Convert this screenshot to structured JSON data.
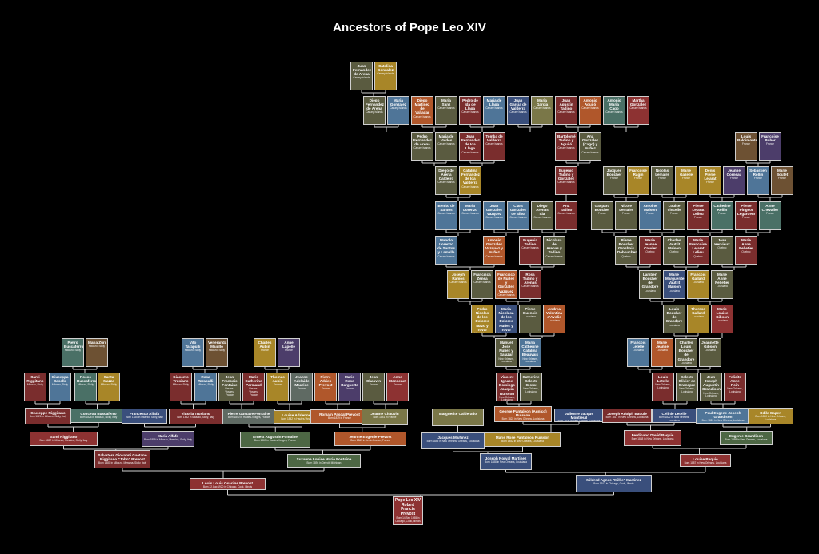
{
  "title": "Ancestors of Pope Leo XIV",
  "colors": {
    "background": "#000000",
    "line": "#d0d0d0",
    "olive": "#5a5b40",
    "mustard": "#a88628",
    "rust": "#b0572b",
    "slate": "#4f7598",
    "maroon": "#7a2d2d",
    "purple": "#4c3d6a",
    "teal": "#4a7066",
    "red": "#8d3232",
    "khaki": "#7a7748",
    "grey": "#5f6a63",
    "navy": "#3a4f7c",
    "green": "#4d6744",
    "brown": "#6d5133"
  },
  "people": [
    {
      "id": "p1",
      "name": "Pope Leo XIV Robert Francis Prevost",
      "details": "Born 14 Sep 1955 in Chicago, Cook, Illinois"
    },
    {
      "id": "f",
      "name": "Louis Louis Osacine Prevost",
      "details": "Born 22 Aug 1920 in Chicago, Cook, Illinois"
    },
    {
      "id": "m",
      "name": "Mildred Agnes \"Millie\" Martinez",
      "details": "Born 1912 in Chicago, Cook, Illinois"
    },
    {
      "id": "ff",
      "name": "Salvatore Giovanni Gaetano Riggitano \"John\" Prevost",
      "details": "Born 1880 in Milazzo, Messina, Sicily, Italy"
    },
    {
      "id": "fm",
      "name": "Suzanne Louise Marie Fontaine",
      "details": "Born 1894 in Detroit, Michigan"
    },
    {
      "id": "mf",
      "name": "Joseph Norval Martinez",
      "details": "Born 1888 in New Orleans, Louisiana"
    },
    {
      "id": "mm",
      "name": "Louise Baquie",
      "details": "Born 1887 in New Orleans, Louisiana"
    },
    {
      "id": "fff",
      "name": "Santi Riggitano",
      "details": "Born 1857 in Milazzo, Messina, Sicily, Italy"
    },
    {
      "id": "ffm",
      "name": "Maria Alfafa",
      "details": "Born 1859 in Milazzo, Messina, Sicily, Italy"
    },
    {
      "id": "fmf",
      "name": "Ernest Augustin Fontaine",
      "details": "Born 1867 in Hautes-Vosges, France"
    },
    {
      "id": "fmm",
      "name": "Jeanne Eugenie Prevost",
      "details": "Born 1867 in Ile-de-France, France"
    },
    {
      "id": "mff",
      "name": "Jacques Martinez",
      "details": "Born 1845 in New Orleans, Orleans, Louisiana"
    },
    {
      "id": "mfm",
      "name": "Marie Rose Pantaleon Ruisson",
      "details": "Born 1852 in New Orleans, Louisiana"
    },
    {
      "id": "mmf",
      "name": "Ferdinand David Baquie",
      "details": "Born 1848 in New Orleans, Louisiana"
    },
    {
      "id": "mmm",
      "name": "Eugenie Grandison",
      "details": "Born 1855 in New Orleans, Louisiana"
    },
    {
      "id": "g4a",
      "name": "Giuseppe Riggitano",
      "details": "Born 1826 in Milazzo, Sicily, Italy"
    },
    {
      "id": "g4b",
      "name": "Concetta Buscaferro",
      "details": "Born 1828 in Milazzo, Sicily, Italy"
    },
    {
      "id": "g4c",
      "name": "Francesco Alfafa",
      "details": "Born 1830 in Milazzo, Sicily, Italy"
    },
    {
      "id": "g4d",
      "name": "Vittoria Trusiano",
      "details": "Born 1832 in Milazzo, Sicily, Italy"
    },
    {
      "id": "g4e",
      "name": "Pierre Gustave Fontaine",
      "details": "Born 1840 in Hautes-Vosges, France"
    },
    {
      "id": "g4f",
      "name": "Louise Adrienne Aubin",
      "details": "Born 1842 in Hautes-Vosges, France"
    },
    {
      "id": "g4g",
      "name": "Romain Pascal Prevost",
      "details": "Born 1839 in France"
    },
    {
      "id": "g4h",
      "name": "Jeanne Chauvin",
      "details": "Born 1841 in France"
    },
    {
      "id": "g4i",
      "name": "Marguerite Calderado",
      "details": ""
    },
    {
      "id": "g4j",
      "name": "George Pantaleon (Agnico) Ruisson",
      "details": "Born 1822 in New Orleans, Louisiana"
    },
    {
      "id": "g4k",
      "name": "Julienne Jacque Montreuil",
      "details": "Born 1826 in New Orleans, Louisiana"
    },
    {
      "id": "g4l",
      "name": "Joseph Adolph Baquie",
      "details": "Born 1817 in New Orleans, Louisiana"
    },
    {
      "id": "g4m",
      "name": "Celinie Letelle",
      "details": "Born 1822 in New Orleans, Louisiana"
    },
    {
      "id": "g4n",
      "name": "Paul Eugene Joseph Grandison",
      "details": "Born 1824 in New Orleans, Louisiana"
    },
    {
      "id": "g4o",
      "name": "Odile Gapen",
      "details": "Born 1830 in New Orleans, Louisiana"
    },
    {
      "id": "g5a",
      "name": "Santi Riggitano",
      "details": "Milazzo, Sicily"
    },
    {
      "id": "g5b",
      "name": "Giuseppa Casella",
      "details": "Milazzo, Sicily"
    },
    {
      "id": "g5c",
      "name": "Rocco Buscaferro",
      "details": "Milazzo, Sicily"
    },
    {
      "id": "g5d",
      "name": "Santa Mazza",
      "details": "Milazzo, Sicily"
    },
    {
      "id": "g5e",
      "name": "Giacomo Trusiano",
      "details": "Milazzo, Sicily"
    },
    {
      "id": "g5f",
      "name": "Rosa Tarapulli",
      "details": "Milazzo, Sicily"
    },
    {
      "id": "g5g",
      "name": "Jean Francois Fontaine",
      "details": "Hautes-Vosges, France"
    },
    {
      "id": "g5h",
      "name": "Marie Catherine Parmand",
      "details": "Hautes-Vosges, France"
    },
    {
      "id": "g5i",
      "name": "Thomas Aubin",
      "details": "France"
    },
    {
      "id": "g5j",
      "name": "Jeanne Adelaide Maurice",
      "details": "France"
    },
    {
      "id": "g5k",
      "name": "Pierre Adrien Prevost",
      "details": "France"
    },
    {
      "id": "g5l",
      "name": "Marie Rose Barguette",
      "details": "France"
    },
    {
      "id": "g5m",
      "name": "Jean Chauvin",
      "details": "France"
    },
    {
      "id": "g5n",
      "name": "Anne Monnenet",
      "details": "France"
    },
    {
      "id": "g6a",
      "name": "Pietro Buscaferro",
      "details": "Milazzo, Sicily"
    },
    {
      "id": "g6b",
      "name": "Maria Zuri",
      "details": "Milazzo, Sicily"
    },
    {
      "id": "g6c",
      "name": "Vito Tarapulli",
      "details": "Milazzo, Sicily"
    },
    {
      "id": "g6d",
      "name": "Veneranda Maiullo",
      "details": "Milazzo, Sicily"
    },
    {
      "id": "g6e",
      "name": "Charles Aubin",
      "details": "France"
    },
    {
      "id": "g6f",
      "name": "Anne Lapelle",
      "details": "France"
    },
    {
      "id": "g5o",
      "name": "Vincent Ignace Domingo Joaquin Ruisson",
      "details": "New Orleans, Louisiana"
    },
    {
      "id": "g5p",
      "name": "Catherine Celeste Gloux",
      "details": "New Orleans, Louisiana"
    },
    {
      "id": "g6g",
      "name": "Manuel Jose Nuñez y Salazar",
      "details": "New Orleans, Louisiana"
    },
    {
      "id": "g6h",
      "name": "Maria Catherine Catalina Beauvais",
      "details": "New Orleans, Louisiana"
    },
    {
      "id": "g7a",
      "name": "Pedro Nicolas de los Dolores Mazo y Tovar",
      "details": "New Orleans, Louisiana"
    },
    {
      "id": "g7b",
      "name": "Maria Nicolasa de los Dolores Nuñez y Tovar",
      "details": "New Orleans, Louisiana"
    },
    {
      "id": "g7c",
      "name": "Pierre Guenoin",
      "details": "Louisiana"
    },
    {
      "id": "g7d",
      "name": "Andrea Valentina d'Avolie",
      "details": "Louisiana"
    },
    {
      "id": "g8a",
      "name": "Joseph Ramos",
      "details": "Canary Islands"
    },
    {
      "id": "g8b",
      "name": "Francisca Zenea",
      "details": "Canary Islands"
    },
    {
      "id": "g8c",
      "name": "Francisco de Nuñez y Gonzalez Vazquez",
      "details": "Canary Islands"
    },
    {
      "id": "g8d",
      "name": "Rosa Tadino y Arenas",
      "details": "Canary Islands"
    },
    {
      "id": "g9a",
      "name": "Manolo Lorenzo de Santos y Lamalla",
      "details": "Canary Islands"
    },
    {
      "id": "g9b",
      "name": "Antonio Gonzalez Vazquez y Nuñez",
      "details": "Canary Islands"
    },
    {
      "id": "g9c",
      "name": "Eugenia Tadino",
      "details": "Canary Islands"
    },
    {
      "id": "g9d",
      "name": "Nicolasa de Arenas y Tadino",
      "details": "Canary Islands"
    },
    {
      "id": "g10a",
      "name": "Benito de Santos",
      "details": "Canary Islands"
    },
    {
      "id": "g10b",
      "name": "Maria Lorenzo",
      "details": "Canary Islands"
    },
    {
      "id": "g10c",
      "name": "Juan Gonzalez Vazquez",
      "details": "Canary Islands"
    },
    {
      "id": "g10d",
      "name": "Clara Gonzalez de Silva",
      "details": "Canary Islands"
    },
    {
      "id": "g10e",
      "name": "Diego Arenas Ida",
      "details": "Canary Islands"
    },
    {
      "id": "g10f",
      "name": "Ana Tadino",
      "details": "Canary Islands"
    },
    {
      "id": "g11a",
      "name": "Diego de Arena Caldeiro",
      "details": "Canary Islands"
    },
    {
      "id": "g11b",
      "name": "Catalina Fernandez de Ida Valderra",
      "details": "Canary Islands"
    },
    {
      "id": "g11c",
      "name": "Eugenio Tadino y Gonzalez",
      "details": "Canary Islands"
    },
    {
      "id": "g12a",
      "name": "Pedro Fernandez de Arena",
      "details": "Canary Islands"
    },
    {
      "id": "g12b",
      "name": "Maria de Valdes",
      "details": "Canary Islands"
    },
    {
      "id": "g12c",
      "name": "Juan Fernandez de Ida Llaga",
      "details": "Canary Islands"
    },
    {
      "id": "g12d",
      "name": "Tomba de Valderra",
      "details": "Canary Islands"
    },
    {
      "id": "g12e",
      "name": "Bartolomé Tadino y Aguiló",
      "details": "Canary Islands"
    },
    {
      "id": "g12f",
      "name": "Ana Gonzalez (Cago) y Nuñez",
      "details": "Canary Islands"
    },
    {
      "id": "g13a",
      "name": "Diego Fernandez de Arena",
      "details": "Canary Islands"
    },
    {
      "id": "g13b",
      "name": "Maria Gonzalez",
      "details": "Canary Islands"
    },
    {
      "id": "g13c",
      "name": "Diego Martinez de Valladar",
      "details": "Canary Islands"
    },
    {
      "id": "g13d",
      "name": "Maria Sanz",
      "details": "Canary Islands"
    },
    {
      "id": "g13e",
      "name": "Pedro de Ida de Llaga",
      "details": "Canary Islands"
    },
    {
      "id": "g13f",
      "name": "Maria de Llaga",
      "details": "Canary Islands"
    },
    {
      "id": "g13g",
      "name": "Juan Garcia de Valderra",
      "details": "Canary Islands"
    },
    {
      "id": "g13h",
      "name": "Maria Garcia",
      "details": "Canary Islands"
    },
    {
      "id": "g13i",
      "name": "Juan Agustin Tadino",
      "details": "Canary Islands"
    },
    {
      "id": "g13j",
      "name": "Antonio Aguiló",
      "details": "Canary Islands"
    },
    {
      "id": "g13k",
      "name": "Antonio Maria Cago",
      "details": "Canary Islands"
    },
    {
      "id": "g13l",
      "name": "Martha Gonzalez",
      "details": "Canary Islands"
    },
    {
      "id": "g14a",
      "name": "Juan Fernandez de Arena",
      "details": "Canary Islands"
    },
    {
      "id": "g14b",
      "name": "Catalina Gonzalez",
      "details": "Canary Islands"
    },
    {
      "id": "r4a",
      "name": "Louis Letelle",
      "details": "New Orleans, Louisiana"
    },
    {
      "id": "r4b",
      "name": "Celeste Olivier de Grandpre",
      "details": "New Orleans, Louisiana"
    },
    {
      "id": "r4c",
      "name": "Jean Joseph Augustin Grandison",
      "details": "New Orleans, Louisiana"
    },
    {
      "id": "r4d",
      "name": "Felicite Anne Poin",
      "details": "New Orleans, Louisiana"
    },
    {
      "id": "r5a",
      "name": "Francois Letelle",
      "details": "Louisiana"
    },
    {
      "id": "r5b",
      "name": "Marie Jeanne",
      "details": "Louisiana"
    },
    {
      "id": "r5c",
      "name": "Charles Louis Boucher de Grandpre",
      "details": "Louisiana"
    },
    {
      "id": "r5d",
      "name": "Jeannette Gibson",
      "details": "Louisiana"
    },
    {
      "id": "r6a",
      "name": "Louis Boucher de Grandpre",
      "details": "Louisiana"
    },
    {
      "id": "r6b",
      "name": "Therese Gallard",
      "details": "Louisiana"
    },
    {
      "id": "r6c",
      "name": "Marie Louise Gibson",
      "details": "Louisiana"
    },
    {
      "id": "r7a",
      "name": "Lambert Boucher de Grandpre",
      "details": "Louisiana"
    },
    {
      "id": "r7b",
      "name": "Marie Marguerite Vautrit Maison",
      "details": "Louisiana"
    },
    {
      "id": "r7c",
      "name": "Francois Gallard",
      "details": "Louisiana"
    },
    {
      "id": "r7d",
      "name": "Marie Anne Pelletier",
      "details": "Louisiana"
    },
    {
      "id": "r8a",
      "name": "Pierre Boucher Grosbois Deboucherville",
      "details": "Quebec"
    },
    {
      "id": "r8b",
      "name": "Marie Jeanne Crevier",
      "details": "Quebec"
    },
    {
      "id": "r8c",
      "name": "Charles Vautrit Maison",
      "details": "Quebec"
    },
    {
      "id": "r8d",
      "name": "Marie Francoise Lejarat Lelieu",
      "details": "Quebec"
    },
    {
      "id": "r8e",
      "name": "Jean Hervieux",
      "details": "Quebec"
    },
    {
      "id": "r8f",
      "name": "Marie Anne Pelletier",
      "details": "Quebec"
    },
    {
      "id": "r9a",
      "name": "Gaspard Boucher",
      "details": "France"
    },
    {
      "id": "r9b",
      "name": "Nicole Lemaire",
      "details": "France"
    },
    {
      "id": "r9c",
      "name": "Antoine Maison",
      "details": "France"
    },
    {
      "id": "r9d",
      "name": "Louise Vincelle",
      "details": "France"
    },
    {
      "id": "r9e",
      "name": "Pierre Lejarat Lelieu",
      "details": "France"
    },
    {
      "id": "r9f",
      "name": "Catherine Rollin",
      "details": "France"
    },
    {
      "id": "r9g",
      "name": "Pierre Pingeot Legardeur",
      "details": "France"
    },
    {
      "id": "r9h",
      "name": "Anne Chevalier",
      "details": "France"
    },
    {
      "id": "r10a",
      "name": "Jacques Boucher",
      "details": "France"
    },
    {
      "id": "r10b",
      "name": "Francoise Ragin",
      "details": "France"
    },
    {
      "id": "r10c",
      "name": "Nicolas Lemaire",
      "details": "France"
    },
    {
      "id": "r10d",
      "name": "Marie Gazelle",
      "details": "France"
    },
    {
      "id": "r10e",
      "name": "Denis Pierre Lejarat",
      "details": "France"
    },
    {
      "id": "r10f",
      "name": "Jeanne Corneau",
      "details": "France"
    },
    {
      "id": "r10g",
      "name": "Sebastien Rollin",
      "details": "France"
    },
    {
      "id": "r10h",
      "name": "Marie Boutet",
      "details": "France"
    },
    {
      "id": "r11a",
      "name": "Louis Baldimonte",
      "details": "France"
    },
    {
      "id": "r11b",
      "name": "Francoise Boher",
      "details": "France"
    }
  ]
}
